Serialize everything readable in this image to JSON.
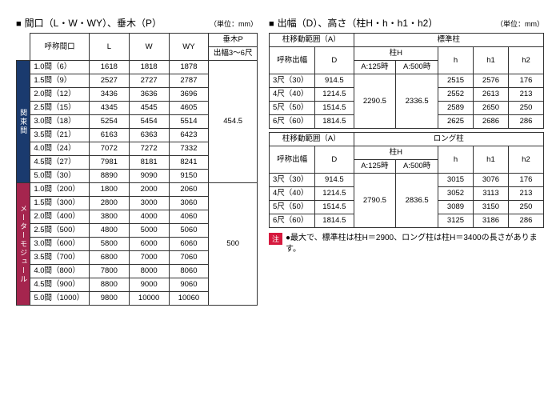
{
  "left": {
    "title_prefix": "■",
    "title": "間口（L・W・WY）、垂木（P）",
    "unit": "（単位：mm）",
    "headers": {
      "name": "呼称間口",
      "L": "L",
      "W": "W",
      "WY": "WY",
      "P_top": "垂木P",
      "P_sub": "出幅3～6尺"
    },
    "group1_label": "関東間",
    "group1_rows": [
      {
        "name": "1.0間（6）",
        "L": "1618",
        "W": "1818",
        "WY": "1878"
      },
      {
        "name": "1.5間（9）",
        "L": "2527",
        "W": "2727",
        "WY": "2787"
      },
      {
        "name": "2.0間（12）",
        "L": "3436",
        "W": "3636",
        "WY": "3696"
      },
      {
        "name": "2.5間（15）",
        "L": "4345",
        "W": "4545",
        "WY": "4605"
      },
      {
        "name": "3.0間（18）",
        "L": "5254",
        "W": "5454",
        "WY": "5514"
      },
      {
        "name": "3.5間（21）",
        "L": "6163",
        "W": "6363",
        "WY": "6423"
      },
      {
        "name": "4.0間（24）",
        "L": "7072",
        "W": "7272",
        "WY": "7332"
      },
      {
        "name": "4.5間（27）",
        "L": "7981",
        "W": "8181",
        "WY": "8241"
      },
      {
        "name": "5.0間（30）",
        "L": "8890",
        "W": "9090",
        "WY": "9150"
      }
    ],
    "group1_P": "454.5",
    "group2_label": "メーターモジュール",
    "group2_rows": [
      {
        "name": "1.0間（200）",
        "L": "1800",
        "W": "2000",
        "WY": "2060"
      },
      {
        "name": "1.5間（300）",
        "L": "2800",
        "W": "3000",
        "WY": "3060"
      },
      {
        "name": "2.0間（400）",
        "L": "3800",
        "W": "4000",
        "WY": "4060"
      },
      {
        "name": "2.5間（500）",
        "L": "4800",
        "W": "5000",
        "WY": "5060"
      },
      {
        "name": "3.0間（600）",
        "L": "5800",
        "W": "6000",
        "WY": "6060"
      },
      {
        "name": "3.5間（700）",
        "L": "6800",
        "W": "7000",
        "WY": "7060"
      },
      {
        "name": "4.0間（800）",
        "L": "7800",
        "W": "8000",
        "WY": "8060"
      },
      {
        "name": "4.5間（900）",
        "L": "8800",
        "W": "9000",
        "WY": "9060"
      },
      {
        "name": "5.0間（1000）",
        "L": "9800",
        "W": "10000",
        "WY": "10060"
      }
    ],
    "group2_P": "500"
  },
  "right": {
    "title_prefix": "■",
    "title": "出幅（D）、高さ（柱H・h・h1・h2）",
    "unit": "（単位：mm）",
    "headers": {
      "rangeA": "柱移動範囲（A）",
      "std_pillar": "標準柱",
      "long_pillar": "ロング柱",
      "name": "呼称出幅",
      "D": "D",
      "pillarH": "柱H",
      "A125": "A:125時",
      "A500": "A:500時",
      "h": "h",
      "h1": "h1",
      "h2": "h2"
    },
    "std": {
      "rows": [
        {
          "name": "3尺（30）",
          "D": "914.5",
          "h": "2515",
          "h1": "2576",
          "h2": "176"
        },
        {
          "name": "4尺（40）",
          "D": "1214.5",
          "h": "2552",
          "h1": "2613",
          "h2": "213"
        },
        {
          "name": "5尺（50）",
          "D": "1514.5",
          "h": "2589",
          "h1": "2650",
          "h2": "250"
        },
        {
          "name": "6尺（60）",
          "D": "1814.5",
          "h": "2625",
          "h1": "2686",
          "h2": "286"
        }
      ],
      "A125": "2290.5",
      "A500": "2336.5"
    },
    "long": {
      "rows": [
        {
          "name": "3尺（30）",
          "D": "914.5",
          "h": "3015",
          "h1": "3076",
          "h2": "176"
        },
        {
          "name": "4尺（40）",
          "D": "1214.5",
          "h": "3052",
          "h1": "3113",
          "h2": "213"
        },
        {
          "name": "5尺（50）",
          "D": "1514.5",
          "h": "3089",
          "h1": "3150",
          "h2": "250"
        },
        {
          "name": "6尺（60）",
          "D": "1814.5",
          "h": "3125",
          "h1": "3186",
          "h2": "286"
        }
      ],
      "A125": "2790.5",
      "A500": "2836.5"
    },
    "note_tag": "注",
    "note_text": "●最大で、標準柱は柱H＝2900、ロング柱は柱H＝3400の長さがあります。"
  }
}
